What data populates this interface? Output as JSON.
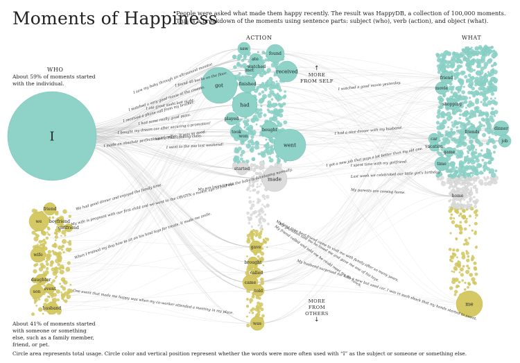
{
  "title": "Moments of Happiness",
  "intro": "People were asked what made them happy recently. The result was HappyDB, a collection of 100,000 moments. This is a breakdown of the moments using sentence parts: subject (who), verb (action), and object (what).",
  "columns": {
    "who": "WHO",
    "action": "ACTION",
    "what": "WHAT"
  },
  "who_self_note": "About 59% of moments started with the individual.",
  "who_others_note": "About 41% of moments started with someone or something else, such as a family member, friend, or pet.",
  "more_from_self": "MORE FROM SELF",
  "more_from_others": "MORE FROM OTHERS",
  "footer": "Circle area represents total usage. Circle color and vertical position represent whether the words were more often used with “I” as the subject or someone or something else.",
  "colors": {
    "self": "#8fd3c8",
    "self_dark": "#6fc0b5",
    "neutral": "#dcdcdc",
    "others": "#d4c964",
    "others_dark": "#c8bb4c",
    "line": "#bdbdbd"
  },
  "subjects": [
    {
      "word": "I",
      "share": 0.59,
      "group": "self"
    },
    {
      "word": "friend",
      "group": "others"
    },
    {
      "word": "we",
      "group": "others"
    },
    {
      "word": "boyfriend",
      "group": "others"
    },
    {
      "word": "girlfriend",
      "group": "others"
    },
    {
      "word": "wife",
      "group": "others"
    },
    {
      "word": "son",
      "group": "others"
    },
    {
      "word": "daughter",
      "group": "others"
    },
    {
      "word": "event",
      "group": "others"
    },
    {
      "word": "husband",
      "group": "others"
    }
  ],
  "verbs": [
    {
      "word": "saw",
      "group": "self"
    },
    {
      "word": "ate",
      "group": "self"
    },
    {
      "word": "found",
      "group": "self"
    },
    {
      "word": "watched",
      "group": "self"
    },
    {
      "word": "met",
      "group": "self"
    },
    {
      "word": "received",
      "group": "self"
    },
    {
      "word": "got",
      "group": "self"
    },
    {
      "word": "finished",
      "group": "self"
    },
    {
      "word": "had",
      "group": "self"
    },
    {
      "word": "played",
      "group": "self"
    },
    {
      "word": "took",
      "group": "self"
    },
    {
      "word": "bought",
      "group": "self"
    },
    {
      "word": "won",
      "group": "self"
    },
    {
      "word": "went",
      "group": "self"
    },
    {
      "word": "started",
      "group": "neutral"
    },
    {
      "word": "made",
      "group": "neutral"
    },
    {
      "word": "gave",
      "group": "others"
    },
    {
      "word": "brought",
      "group": "others"
    },
    {
      "word": "called",
      "group": "others"
    },
    {
      "word": "came",
      "group": "others"
    },
    {
      "word": "told",
      "group": "others"
    },
    {
      "word": "was",
      "group": "others"
    }
  ],
  "objects": [
    {
      "word": "friend",
      "group": "self"
    },
    {
      "word": "movie",
      "group": "self"
    },
    {
      "word": "shopping",
      "group": "self"
    },
    {
      "word": "friends",
      "group": "self"
    },
    {
      "word": "car",
      "group": "self"
    },
    {
      "word": "vacation",
      "group": "self"
    },
    {
      "word": "game",
      "group": "self"
    },
    {
      "word": "time",
      "group": "self"
    },
    {
      "word": "dinner",
      "group": "self"
    },
    {
      "word": "job",
      "group": "self"
    },
    {
      "word": "home",
      "group": "neutral"
    },
    {
      "word": "me",
      "group": "others"
    }
  ],
  "self_sentences": [
    "I saw my baby through an ultrasound monitor.",
    "I found 40 bucks on the floor.",
    "I watched a very good movie at the cinema.",
    "I ate great sushi last night.",
    "I received a phone call from my brother.",
    "I had some really good pizza.",
    "I bought my dream car after securing a promotion!",
    "I took a Thai cooking class.",
    "I made an absolute perfect cup of coffee. It was so good.",
    "I went to the zoo last weekend!",
    "I watched a good movie yesterday.",
    "I had a nice dinner with my husband.",
    "I got a new job that pays a lot better than my old one.",
    "I spent time with my girlfriend.",
    "Last week we celebrated our little girl's birthday.",
    "My parents are coming home."
  ],
  "other_sentences": [
    "We had good dinner and enjoyed the family time.",
    "My wife is pregnant with our first child and we went to the OB/GYN a month ago to find out the baby is developing normally.",
    "My son loves treats.",
    "When I trained my dog how to sit on his hind legs for treats, it made me smile.",
    "My long time best friend came to visit me with family after so many years.",
    "My grandson told me he loved me and gave me one of his toys.",
    "My friend called and told me he could meet me for lunch.",
    "My husband surprised me with a new but used car. I was in such shock that my hands started to sweat.",
    "One event that made me happy was when my co-worker attended a meeting in my place."
  ]
}
